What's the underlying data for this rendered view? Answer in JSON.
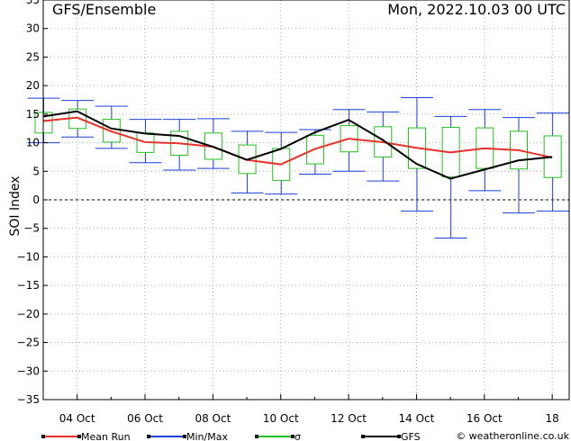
{
  "chart_data": {
    "type": "line",
    "title": "GFS/Ensemble",
    "date_label": "Mon, 2022.10.03   00 UTC",
    "ylabel": "SOI Index",
    "ylim": [
      -35,
      35
    ],
    "yticks": [
      -35,
      -30,
      -25,
      -20,
      -15,
      -10,
      -5,
      0,
      5,
      10,
      15,
      20,
      25,
      30,
      35
    ],
    "xlim": [
      0,
      15.5
    ],
    "xticks": [
      {
        "x": 1,
        "label": "04 Oct"
      },
      {
        "x": 3,
        "label": "06 Oct"
      },
      {
        "x": 5,
        "label": "08 Oct"
      },
      {
        "x": 7,
        "label": "10 Oct"
      },
      {
        "x": 9,
        "label": "12 Oct"
      },
      {
        "x": 11,
        "label": "14 Oct"
      },
      {
        "x": 13,
        "label": "16 Oct"
      },
      {
        "x": 15,
        "label": "18"
      }
    ],
    "x": [
      0,
      1,
      2,
      3,
      4,
      5,
      6,
      7,
      8,
      9,
      10,
      11,
      12,
      13,
      14,
      15
    ],
    "series": [
      {
        "name": "Mean Run",
        "color": "#e8302a",
        "values": [
          13.8,
          14.4,
          12.0,
          10.1,
          9.9,
          9.3,
          7.0,
          6.2,
          8.9,
          10.7,
          10.1,
          9.1,
          8.3,
          9.0,
          8.7,
          7.4
        ]
      },
      {
        "name": "GFS",
        "color": "#000000",
        "values": [
          14.6,
          15.5,
          12.5,
          11.6,
          11.2,
          9.3,
          7.0,
          8.9,
          11.8,
          14.0,
          10.5,
          6.3,
          3.7,
          5.3,
          6.9,
          7.5
        ]
      },
      {
        "name": "Min/Max",
        "color": "#1c3fd8",
        "min": [
          10.0,
          11.0,
          9.0,
          6.5,
          5.2,
          5.5,
          1.2,
          1.0,
          4.5,
          5.0,
          3.3,
          -2.0,
          -6.7,
          1.6,
          -2.3,
          -2.0
        ],
        "max": [
          17.8,
          17.4,
          16.4,
          14.1,
          14.1,
          14.2,
          12.0,
          11.8,
          12.3,
          15.8,
          15.4,
          17.9,
          14.6,
          15.8,
          14.4,
          15.2
        ]
      },
      {
        "name": "σ",
        "color": "#22c01e",
        "low": [
          11.7,
          12.5,
          10.1,
          8.3,
          7.8,
          7.1,
          4.6,
          3.4,
          6.3,
          8.4,
          7.5,
          5.5,
          4.0,
          5.5,
          5.4,
          3.9
        ],
        "high": [
          15.3,
          15.9,
          14.1,
          11.7,
          12.0,
          11.7,
          9.6,
          9.0,
          11.3,
          13.0,
          12.8,
          12.6,
          12.7,
          12.6,
          12.0,
          11.2
        ]
      }
    ],
    "grid": true,
    "legend_position": "bottom",
    "legend": [
      {
        "label": "Mean Run",
        "color": "#e8302a"
      },
      {
        "label": "Min/Max",
        "color": "#1c3fd8"
      },
      {
        "label": "σ",
        "color": "#22c01e"
      },
      {
        "label": "GFS",
        "color": "#000000"
      }
    ],
    "credit": "© weatheronline.co.uk"
  }
}
